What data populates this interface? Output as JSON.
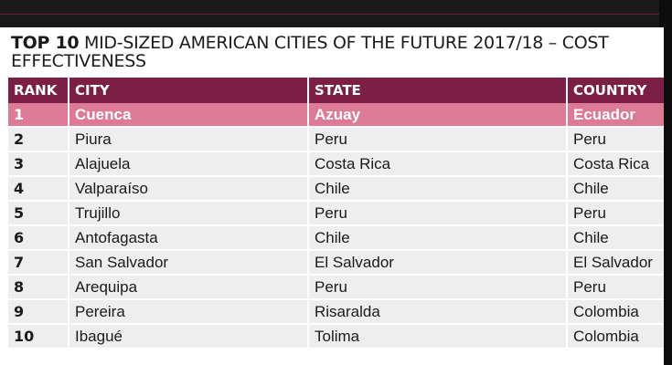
{
  "title": {
    "bold": "TOP 10",
    "rest": " MID-SIZED AMERICAN CITIES OF THE FUTURE 2017/18 – COST EFFECTIVENESS"
  },
  "table": {
    "headers": [
      "RANK",
      "CITY",
      "STATE",
      "COUNTRY"
    ],
    "rows": [
      [
        "1",
        "Cuenca",
        "Azuay",
        "Ecuador"
      ],
      [
        "2",
        "Piura",
        "Peru",
        "Peru"
      ],
      [
        "3",
        "Alajuela",
        "Costa Rica",
        "Costa Rica"
      ],
      [
        "4",
        "Valparaíso",
        "Chile",
        "Chile"
      ],
      [
        "5",
        "Trujillo",
        "Peru",
        "Peru"
      ],
      [
        "6",
        "Antofagasta",
        "Chile",
        "Chile"
      ],
      [
        "7",
        "San Salvador",
        "El Salvador",
        "El Salvador"
      ],
      [
        "8",
        "Arequipa",
        "Peru",
        "Peru"
      ],
      [
        "9",
        "Pereira",
        "Risaralda",
        "Colombia"
      ],
      [
        "10",
        "Ibagué",
        "Tolima",
        "Colombia"
      ]
    ]
  },
  "colors": {
    "header_bg": "#7c1f45",
    "highlight_row_bg": "#dd7a96",
    "row_bg": "#eeeeee",
    "page_bg": "#111111"
  }
}
